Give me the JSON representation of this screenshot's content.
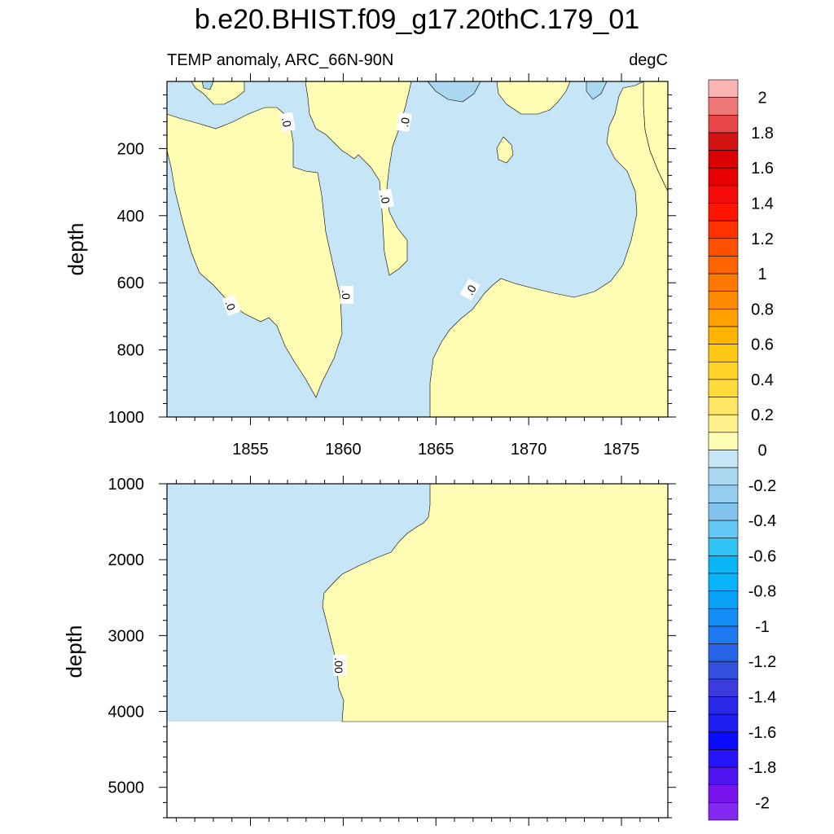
{
  "title": "b.e20.BHIST.f09_g17.20thC.179_01",
  "subtitle_left": "TEMP anomaly, ARC_66N-90N",
  "subtitle_right": "degC",
  "colors": {
    "positive_fill": "#fffdb4",
    "negative_fill": "#c6e5f6",
    "contour_line": "#000000"
  },
  "chart_data": [
    {
      "type": "contour",
      "panel": "upper",
      "xlabel": "",
      "ylabel": "depth",
      "xlim": [
        1850.5,
        1877.5
      ],
      "ylim": [
        1000,
        0
      ],
      "xticks": [
        1855,
        1860,
        1865,
        1870,
        1875
      ],
      "xtick_labels": [
        "1855",
        "1860",
        "1865",
        "1870",
        "1875"
      ],
      "yticks": [
        200,
        400,
        600,
        800,
        1000
      ],
      "ytick_labels": [
        "200",
        "400",
        "600",
        "800",
        "1000"
      ],
      "contour_labels": [
        ".0",
        ".0",
        ".0",
        ".0",
        ".0",
        ".0"
      ],
      "contour_levels": [
        0
      ]
    },
    {
      "type": "contour",
      "panel": "lower",
      "xlabel": "",
      "ylabel": "depth",
      "xlim": [
        1850.5,
        1877.5
      ],
      "ylim": [
        5400,
        1000
      ],
      "yticks": [
        1000,
        2000,
        3000,
        4000,
        5000
      ],
      "ytick_labels": [
        "1000",
        "2000",
        "3000",
        "4000",
        "5000"
      ],
      "contour_labels": [
        ".00"
      ],
      "contour_levels": [
        0
      ],
      "data_bottom_depth": 4120
    },
    {
      "type": "colorbar",
      "levels": [
        -2,
        -1.9,
        -1.8,
        -1.7,
        -1.6,
        -1.5,
        -1.4,
        -1.3,
        -1.2,
        -1.1,
        -1,
        -0.9,
        -0.8,
        -0.7,
        -0.6,
        -0.5,
        -0.4,
        -0.3,
        -0.2,
        -0.1,
        0,
        0.1,
        0.2,
        0.3,
        0.4,
        0.5,
        0.6,
        0.7,
        0.8,
        0.9,
        1,
        1.1,
        1.2,
        1.3,
        1.4,
        1.5,
        1.6,
        1.7,
        1.8,
        1.9,
        2
      ],
      "labels": [
        "2",
        "1.8",
        "1.6",
        "1.4",
        "1.2",
        "1",
        "0.8",
        "0.6",
        "0.4",
        "0.2",
        "0",
        "-0.2",
        "-0.4",
        "-0.6",
        "-0.8",
        "-1",
        "-1.2",
        "-1.4",
        "-1.6",
        "-1.8",
        "-2"
      ],
      "colors_top_to_bottom": [
        "#fbb4b4",
        "#f07878",
        "#e64646",
        "#d21414",
        "#dc0000",
        "#e60000",
        "#f50a0a",
        "#ff1400",
        "#ff3200",
        "#ff5000",
        "#ff6400",
        "#ff7800",
        "#ff8c00",
        "#ffa000",
        "#ffb400",
        "#ffc814",
        "#ffd228",
        "#ffdc3c",
        "#ffe664",
        "#fff08c",
        "#fffdb4",
        "#c6e5f6",
        "#aad8f0",
        "#96cdee",
        "#82c3ee",
        "#64c8f5",
        "#32c3f5",
        "#0ab4f5",
        "#0ab4fa",
        "#0aa0f5",
        "#148cf5",
        "#1e78f0",
        "#2864e6",
        "#3250dc",
        "#3c3cdc",
        "#2828e6",
        "#1e1ef0",
        "#0a0aff",
        "#2814fa",
        "#5014f0",
        "#7814eb",
        "#8228f0"
      ]
    }
  ]
}
